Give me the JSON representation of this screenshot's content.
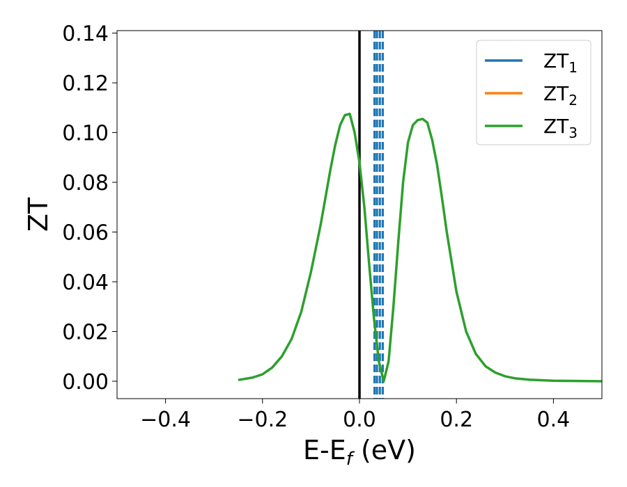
{
  "chart_data": {
    "type": "line",
    "title": "",
    "xlabel": "E-E",
    "xlabel_sub": "f",
    "xlabel_unit": " (eV)",
    "ylabel": "ZT",
    "xlim": [
      -0.5,
      0.5
    ],
    "ylim": [
      -0.007,
      0.141
    ],
    "xticks": [
      -0.4,
      -0.2,
      0.0,
      0.2,
      0.4
    ],
    "xtick_labels": [
      "−0.4",
      "−0.2",
      "0.0",
      "0.2",
      "0.4"
    ],
    "yticks": [
      0.0,
      0.02,
      0.04,
      0.06,
      0.08,
      0.1,
      0.12,
      0.14
    ],
    "ytick_labels": [
      "0.00",
      "0.02",
      "0.04",
      "0.06",
      "0.08",
      "0.10",
      "0.12",
      "0.14"
    ],
    "grid": false,
    "legend_position": "top-right",
    "series": [
      {
        "name": "ZT",
        "sub": "1",
        "color": "#1f77b4",
        "x": [],
        "y": []
      },
      {
        "name": "ZT",
        "sub": "2",
        "color": "#ff7f0e",
        "x": [],
        "y": []
      },
      {
        "name": "ZT",
        "sub": "3",
        "color": "#2ca02c",
        "x": [
          -0.25,
          -0.22,
          -0.2,
          -0.18,
          -0.16,
          -0.14,
          -0.12,
          -0.1,
          -0.08,
          -0.06,
          -0.05,
          -0.04,
          -0.03,
          -0.02,
          -0.01,
          0.0,
          0.01,
          0.02,
          0.03,
          0.04,
          0.05,
          0.06,
          0.07,
          0.08,
          0.09,
          0.1,
          0.11,
          0.12,
          0.13,
          0.14,
          0.15,
          0.16,
          0.17,
          0.18,
          0.2,
          0.22,
          0.24,
          0.26,
          0.28,
          0.3,
          0.32,
          0.35,
          0.4,
          0.45,
          0.5
        ],
        "y": [
          0.0005,
          0.0015,
          0.0028,
          0.0055,
          0.01,
          0.017,
          0.028,
          0.044,
          0.063,
          0.085,
          0.095,
          0.103,
          0.107,
          0.1075,
          0.1,
          0.088,
          0.07,
          0.047,
          0.025,
          0.008,
          0.0,
          0.008,
          0.03,
          0.056,
          0.08,
          0.096,
          0.103,
          0.105,
          0.1055,
          0.104,
          0.097,
          0.087,
          0.074,
          0.06,
          0.036,
          0.02,
          0.011,
          0.006,
          0.0035,
          0.002,
          0.0012,
          0.0006,
          0.0002,
          0.0001,
          0.0
        ]
      }
    ],
    "vertical_lines": [
      {
        "x": 0.0,
        "style": "solid",
        "color": "#000000"
      },
      {
        "x": 0.031,
        "style": "dashed",
        "color": "#1f77b4"
      },
      {
        "x": 0.036,
        "style": "dashed",
        "color": "#1f77b4"
      },
      {
        "x": 0.042,
        "style": "dashed",
        "color": "#1f77b4"
      },
      {
        "x": 0.048,
        "style": "dashed",
        "color": "#1f77b4"
      }
    ]
  }
}
